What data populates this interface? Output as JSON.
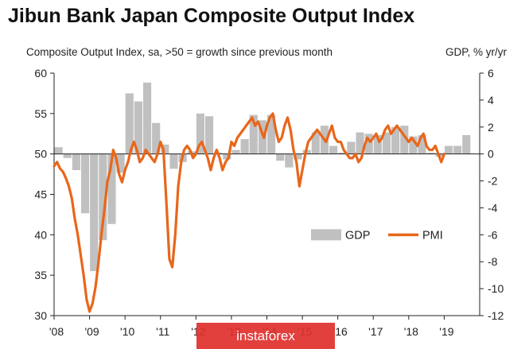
{
  "title": "Jibun Bank Japan Composite Output Index",
  "subtitle": "Composite Output Index, sa, >50 = growth since previous month",
  "right_axis_label": "GDP, % yr/yr",
  "watermark": "instaforex",
  "chart_data": {
    "type": "bar+line",
    "title": "Jibun Bank Japan Composite Output Index",
    "subtitle": "Composite Output Index, sa, >50 = growth since previous month",
    "xlabel": "",
    "ylabel_left": "",
    "ylabel_right": "GDP, % yr/yr",
    "x_ticks": [
      "'08",
      "'09",
      "'10",
      "'11",
      "'12",
      "'13",
      "'14",
      "'15",
      "'16",
      "'17",
      "'18",
      "'19"
    ],
    "y_left_ticks": [
      30,
      35,
      40,
      45,
      50,
      55,
      60
    ],
    "y_right_ticks": [
      -12,
      -10,
      -8,
      -6,
      -4,
      -2,
      0,
      2,
      4,
      6
    ],
    "ylim_left": [
      30,
      60
    ],
    "ylim_right": [
      -12,
      6
    ],
    "legend": [
      "GDP",
      "PMI"
    ],
    "legend_placement": "center-right",
    "colors": {
      "gdp": "#c0c0c0",
      "pmi": "#e8661a"
    },
    "series": [
      {
        "name": "GDP",
        "kind": "bar",
        "axis": "right",
        "quarters": [
          "2008Q1",
          "2008Q2",
          "2008Q3",
          "2008Q4",
          "2009Q1",
          "2009Q2",
          "2009Q3",
          "2009Q4",
          "2010Q1",
          "2010Q2",
          "2010Q3",
          "2010Q4",
          "2011Q1",
          "2011Q2",
          "2011Q3",
          "2011Q4",
          "2012Q1",
          "2012Q2",
          "2012Q3",
          "2012Q4",
          "2013Q1",
          "2013Q2",
          "2013Q3",
          "2013Q4",
          "2014Q1",
          "2014Q2",
          "2014Q3",
          "2014Q4",
          "2015Q1",
          "2015Q2",
          "2015Q3",
          "2015Q4",
          "2016Q1",
          "2016Q2",
          "2016Q3",
          "2016Q4",
          "2017Q1",
          "2017Q2",
          "2017Q3",
          "2017Q4",
          "2018Q1",
          "2018Q2",
          "2018Q3",
          "2018Q4",
          "2019Q1",
          "2019Q2",
          "2019Q3"
        ],
        "values": [
          0.5,
          -0.3,
          -1.2,
          -4.4,
          -8.7,
          -6.4,
          -5.2,
          -1.4,
          4.5,
          3.9,
          5.3,
          2.3,
          0.7,
          -1.1,
          -0.6,
          0.2,
          3.0,
          2.8,
          0.1,
          -0.4,
          0.3,
          1.1,
          2.9,
          2.5,
          2.9,
          -0.5,
          -1.0,
          -0.4,
          0.3,
          1.6,
          2.1,
          0.6,
          0.1,
          0.9,
          1.6,
          1.5,
          1.4,
          1.6,
          2.0,
          2.1,
          1.3,
          1.4,
          0.1,
          -0.2,
          0.6,
          0.6,
          1.4
        ]
      },
      {
        "name": "PMI",
        "kind": "line",
        "axis": "left",
        "months_start": "2008-01",
        "values": [
          48.5,
          49.0,
          48.2,
          47.8,
          47.0,
          46.0,
          44.5,
          42.0,
          40.0,
          37.5,
          35.0,
          32.0,
          30.5,
          31.5,
          33.5,
          36.5,
          40.0,
          43.0,
          46.5,
          48.0,
          50.5,
          49.5,
          47.5,
          46.5,
          48.0,
          49.0,
          50.5,
          51.5,
          50.5,
          49.0,
          49.5,
          50.5,
          50.0,
          49.5,
          49.0,
          50.0,
          51.5,
          50.5,
          44.0,
          37.0,
          36.0,
          40.0,
          46.0,
          49.0,
          50.5,
          51.0,
          50.5,
          49.5,
          50.0,
          51.0,
          51.5,
          50.5,
          49.5,
          48.0,
          49.5,
          50.5,
          49.5,
          48.0,
          49.0,
          49.5,
          51.5,
          51.0,
          52.0,
          52.5,
          53.0,
          53.5,
          54.0,
          54.5,
          53.5,
          54.0,
          53.0,
          52.0,
          53.5,
          54.5,
          55.0,
          53.0,
          51.5,
          52.0,
          53.5,
          54.5,
          53.0,
          50.5,
          49.0,
          46.0,
          48.0,
          50.0,
          51.5,
          52.0,
          52.5,
          53.0,
          52.5,
          52.0,
          51.5,
          52.5,
          53.5,
          52.0,
          51.5,
          51.5,
          50.5,
          50.0,
          49.5,
          49.5,
          50.0,
          49.0,
          49.5,
          51.0,
          52.0,
          51.5,
          52.0,
          52.5,
          51.5,
          52.0,
          53.0,
          53.5,
          52.5,
          53.0,
          53.5,
          53.0,
          52.5,
          52.0,
          51.5,
          52.0,
          51.5,
          51.0,
          52.0,
          52.5,
          51.0,
          50.5,
          50.5,
          51.0,
          50.0,
          49.0,
          50.0
        ]
      }
    ]
  }
}
